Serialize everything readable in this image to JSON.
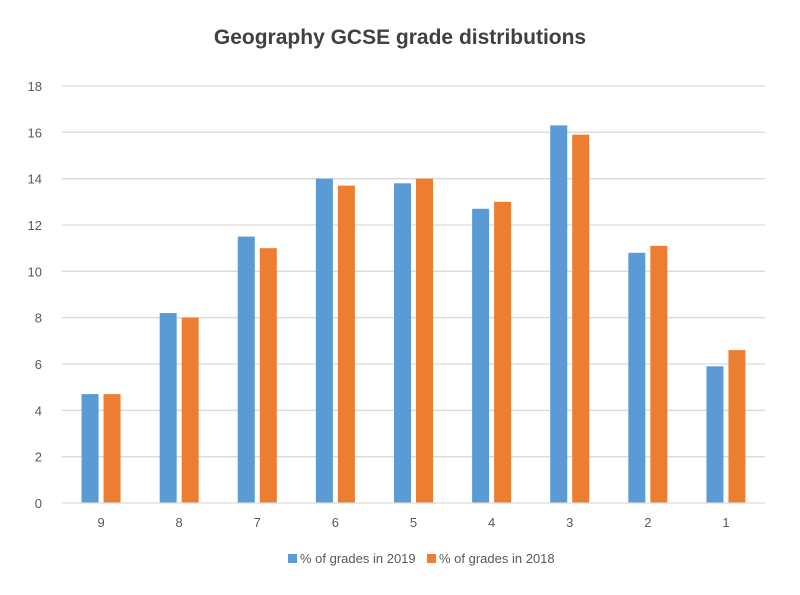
{
  "chart_data": {
    "type": "bar",
    "title": "Geography GCSE grade distributions",
    "xlabel": "",
    "ylabel": "",
    "categories": [
      "9",
      "8",
      "7",
      "6",
      "5",
      "4",
      "3",
      "2",
      "1"
    ],
    "series": [
      {
        "name": "% of grades in 2019",
        "color": "#5B9BD5",
        "values": [
          4.7,
          8.2,
          11.5,
          14.0,
          13.8,
          12.7,
          16.3,
          10.8,
          5.9
        ]
      },
      {
        "name": "% of grades in 2018",
        "color": "#ED7D31",
        "values": [
          4.7,
          8.0,
          11.0,
          13.7,
          14.0,
          13.0,
          15.9,
          11.1,
          6.6
        ]
      }
    ],
    "ylim": [
      0,
      18
    ],
    "yticks": [
      0,
      2,
      4,
      6,
      8,
      10,
      12,
      14,
      16,
      18
    ],
    "grid": true,
    "legend_position": "bottom"
  }
}
